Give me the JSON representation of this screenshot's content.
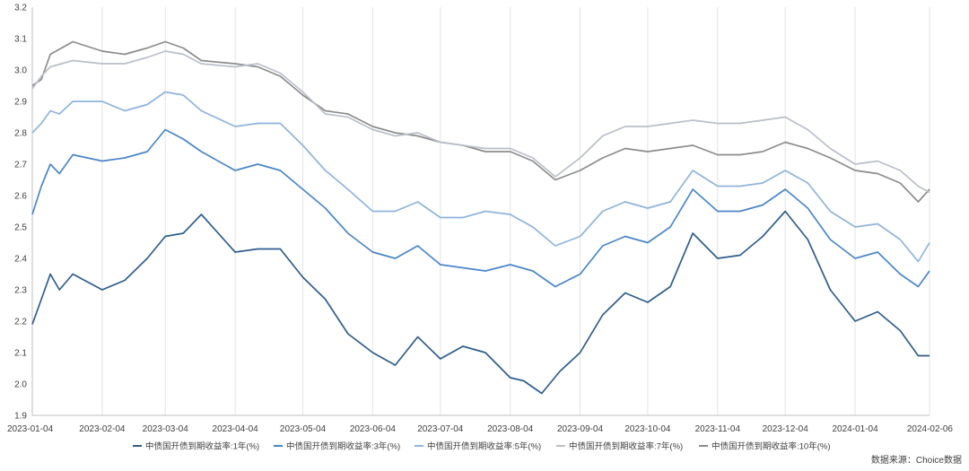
{
  "chart_data": {
    "type": "line",
    "title": "",
    "xlabel": "",
    "ylabel": "",
    "x_start": "2023-01-04",
    "x_end": "2024-02-06",
    "ylim": [
      1.9,
      3.2
    ],
    "yticks": [
      "1.9",
      "2.0",
      "2.1",
      "2.2",
      "2.3",
      "2.4",
      "2.5",
      "2.6",
      "2.7",
      "2.8",
      "2.9",
      "3.0",
      "3.1",
      "3.2"
    ],
    "xticks": [
      "2023-01-04",
      "2023-02-04",
      "2023-03-04",
      "2023-04-04",
      "2023-05-04",
      "2023-06-04",
      "2023-07-04",
      "2023-08-04",
      "2023-09-04",
      "2023-10-04",
      "2023-11-04",
      "2023-12-04",
      "2024-01-04",
      "2024-02-06"
    ],
    "grid": "vertical",
    "legend_position": "bottom",
    "series": [
      {
        "name": "中债国开债到期收益率:1年(%)",
        "color": "#2f5d8c",
        "points": [
          [
            "2023-01-04",
            2.19
          ],
          [
            "2023-01-08",
            2.27
          ],
          [
            "2023-01-12",
            2.35
          ],
          [
            "2023-01-16",
            2.3
          ],
          [
            "2023-01-22",
            2.35
          ],
          [
            "2023-02-04",
            2.3
          ],
          [
            "2023-02-14",
            2.33
          ],
          [
            "2023-02-24",
            2.4
          ],
          [
            "2023-03-04",
            2.47
          ],
          [
            "2023-03-12",
            2.48
          ],
          [
            "2023-03-20",
            2.54
          ],
          [
            "2023-04-04",
            2.42
          ],
          [
            "2023-04-14",
            2.43
          ],
          [
            "2023-04-24",
            2.43
          ],
          [
            "2023-05-04",
            2.34
          ],
          [
            "2023-05-14",
            2.27
          ],
          [
            "2023-05-24",
            2.16
          ],
          [
            "2023-06-04",
            2.1
          ],
          [
            "2023-06-14",
            2.06
          ],
          [
            "2023-06-24",
            2.15
          ],
          [
            "2023-07-04",
            2.08
          ],
          [
            "2023-07-14",
            2.12
          ],
          [
            "2023-07-24",
            2.1
          ],
          [
            "2023-08-04",
            2.02
          ],
          [
            "2023-08-10",
            2.01
          ],
          [
            "2023-08-18",
            1.97
          ],
          [
            "2023-08-26",
            2.04
          ],
          [
            "2023-09-04",
            2.1
          ],
          [
            "2023-09-14",
            2.22
          ],
          [
            "2023-09-24",
            2.29
          ],
          [
            "2023-10-04",
            2.26
          ],
          [
            "2023-10-14",
            2.31
          ],
          [
            "2023-10-24",
            2.48
          ],
          [
            "2023-11-04",
            2.4
          ],
          [
            "2023-11-14",
            2.41
          ],
          [
            "2023-11-24",
            2.47
          ],
          [
            "2023-12-04",
            2.55
          ],
          [
            "2023-12-14",
            2.46
          ],
          [
            "2023-12-24",
            2.3
          ],
          [
            "2024-01-04",
            2.2
          ],
          [
            "2024-01-14",
            2.23
          ],
          [
            "2024-01-24",
            2.17
          ],
          [
            "2024-02-01",
            2.09
          ],
          [
            "2024-02-06",
            2.09
          ]
        ]
      },
      {
        "name": "中债国开债到期收益率:3年(%)",
        "color": "#4a86c8",
        "points": [
          [
            "2023-01-04",
            2.54
          ],
          [
            "2023-01-08",
            2.63
          ],
          [
            "2023-01-12",
            2.7
          ],
          [
            "2023-01-16",
            2.67
          ],
          [
            "2023-01-22",
            2.73
          ],
          [
            "2023-02-04",
            2.71
          ],
          [
            "2023-02-14",
            2.72
          ],
          [
            "2023-02-24",
            2.74
          ],
          [
            "2023-03-04",
            2.81
          ],
          [
            "2023-03-12",
            2.78
          ],
          [
            "2023-03-20",
            2.74
          ],
          [
            "2023-04-04",
            2.68
          ],
          [
            "2023-04-14",
            2.7
          ],
          [
            "2023-04-24",
            2.68
          ],
          [
            "2023-05-04",
            2.62
          ],
          [
            "2023-05-14",
            2.56
          ],
          [
            "2023-05-24",
            2.48
          ],
          [
            "2023-06-04",
            2.42
          ],
          [
            "2023-06-14",
            2.4
          ],
          [
            "2023-06-24",
            2.44
          ],
          [
            "2023-07-04",
            2.38
          ],
          [
            "2023-07-14",
            2.37
          ],
          [
            "2023-07-24",
            2.36
          ],
          [
            "2023-08-04",
            2.38
          ],
          [
            "2023-08-14",
            2.36
          ],
          [
            "2023-08-24",
            2.31
          ],
          [
            "2023-09-04",
            2.35
          ],
          [
            "2023-09-14",
            2.44
          ],
          [
            "2023-09-24",
            2.47
          ],
          [
            "2023-10-04",
            2.45
          ],
          [
            "2023-10-14",
            2.5
          ],
          [
            "2023-10-24",
            2.62
          ],
          [
            "2023-11-04",
            2.55
          ],
          [
            "2023-11-14",
            2.55
          ],
          [
            "2023-11-24",
            2.57
          ],
          [
            "2023-12-04",
            2.62
          ],
          [
            "2023-12-14",
            2.56
          ],
          [
            "2023-12-24",
            2.46
          ],
          [
            "2024-01-04",
            2.4
          ],
          [
            "2024-01-14",
            2.42
          ],
          [
            "2024-01-24",
            2.35
          ],
          [
            "2024-02-01",
            2.31
          ],
          [
            "2024-02-06",
            2.36
          ]
        ]
      },
      {
        "name": "中债国开债到期收益率:5年(%)",
        "color": "#8fb4dc",
        "points": [
          [
            "2023-01-04",
            2.8
          ],
          [
            "2023-01-08",
            2.83
          ],
          [
            "2023-01-12",
            2.87
          ],
          [
            "2023-01-16",
            2.86
          ],
          [
            "2023-01-22",
            2.9
          ],
          [
            "2023-02-04",
            2.9
          ],
          [
            "2023-02-14",
            2.87
          ],
          [
            "2023-02-24",
            2.89
          ],
          [
            "2023-03-04",
            2.93
          ],
          [
            "2023-03-12",
            2.92
          ],
          [
            "2023-03-20",
            2.87
          ],
          [
            "2023-04-04",
            2.82
          ],
          [
            "2023-04-14",
            2.83
          ],
          [
            "2023-04-24",
            2.83
          ],
          [
            "2023-05-04",
            2.76
          ],
          [
            "2023-05-14",
            2.68
          ],
          [
            "2023-05-24",
            2.62
          ],
          [
            "2023-06-04",
            2.55
          ],
          [
            "2023-06-14",
            2.55
          ],
          [
            "2023-06-24",
            2.58
          ],
          [
            "2023-07-04",
            2.53
          ],
          [
            "2023-07-14",
            2.53
          ],
          [
            "2023-07-24",
            2.55
          ],
          [
            "2023-08-04",
            2.54
          ],
          [
            "2023-08-14",
            2.5
          ],
          [
            "2023-08-24",
            2.44
          ],
          [
            "2023-09-04",
            2.47
          ],
          [
            "2023-09-14",
            2.55
          ],
          [
            "2023-09-24",
            2.58
          ],
          [
            "2023-10-04",
            2.56
          ],
          [
            "2023-10-14",
            2.58
          ],
          [
            "2023-10-24",
            2.68
          ],
          [
            "2023-11-04",
            2.63
          ],
          [
            "2023-11-14",
            2.63
          ],
          [
            "2023-11-24",
            2.64
          ],
          [
            "2023-12-04",
            2.68
          ],
          [
            "2023-12-14",
            2.64
          ],
          [
            "2023-12-24",
            2.55
          ],
          [
            "2024-01-04",
            2.5
          ],
          [
            "2024-01-14",
            2.51
          ],
          [
            "2024-01-24",
            2.46
          ],
          [
            "2024-02-01",
            2.39
          ],
          [
            "2024-02-06",
            2.45
          ]
        ]
      },
      {
        "name": "中债国开债到期收益率:7年(%)",
        "color": "#b9bfc9",
        "points": [
          [
            "2023-01-04",
            2.94
          ],
          [
            "2023-01-08",
            2.98
          ],
          [
            "2023-01-12",
            3.01
          ],
          [
            "2023-01-22",
            3.03
          ],
          [
            "2023-02-04",
            3.02
          ],
          [
            "2023-02-14",
            3.02
          ],
          [
            "2023-02-24",
            3.04
          ],
          [
            "2023-03-04",
            3.06
          ],
          [
            "2023-03-12",
            3.05
          ],
          [
            "2023-03-20",
            3.02
          ],
          [
            "2023-04-04",
            3.01
          ],
          [
            "2023-04-14",
            3.02
          ],
          [
            "2023-04-24",
            2.99
          ],
          [
            "2023-05-04",
            2.93
          ],
          [
            "2023-05-14",
            2.86
          ],
          [
            "2023-05-24",
            2.85
          ],
          [
            "2023-06-04",
            2.81
          ],
          [
            "2023-06-14",
            2.79
          ],
          [
            "2023-06-24",
            2.8
          ],
          [
            "2023-07-04",
            2.77
          ],
          [
            "2023-07-14",
            2.76
          ],
          [
            "2023-07-24",
            2.75
          ],
          [
            "2023-08-04",
            2.75
          ],
          [
            "2023-08-14",
            2.72
          ],
          [
            "2023-08-24",
            2.66
          ],
          [
            "2023-09-04",
            2.72
          ],
          [
            "2023-09-14",
            2.79
          ],
          [
            "2023-09-24",
            2.82
          ],
          [
            "2023-10-04",
            2.82
          ],
          [
            "2023-10-14",
            2.83
          ],
          [
            "2023-10-24",
            2.84
          ],
          [
            "2023-11-04",
            2.83
          ],
          [
            "2023-11-14",
            2.83
          ],
          [
            "2023-11-24",
            2.84
          ],
          [
            "2023-12-04",
            2.85
          ],
          [
            "2023-12-14",
            2.81
          ],
          [
            "2023-12-24",
            2.75
          ],
          [
            "2024-01-04",
            2.7
          ],
          [
            "2024-01-14",
            2.71
          ],
          [
            "2024-01-24",
            2.68
          ],
          [
            "2024-02-01",
            2.63
          ],
          [
            "2024-02-06",
            2.61
          ]
        ]
      },
      {
        "name": "中债国开债到期收益率:10年(%)",
        "color": "#8c8c8c",
        "points": [
          [
            "2023-01-04",
            2.95
          ],
          [
            "2023-01-08",
            2.97
          ],
          [
            "2023-01-12",
            3.05
          ],
          [
            "2023-01-22",
            3.09
          ],
          [
            "2023-02-04",
            3.06
          ],
          [
            "2023-02-14",
            3.05
          ],
          [
            "2023-02-24",
            3.07
          ],
          [
            "2023-03-04",
            3.09
          ],
          [
            "2023-03-12",
            3.07
          ],
          [
            "2023-03-20",
            3.03
          ],
          [
            "2023-04-04",
            3.02
          ],
          [
            "2023-04-14",
            3.01
          ],
          [
            "2023-04-24",
            2.98
          ],
          [
            "2023-05-04",
            2.92
          ],
          [
            "2023-05-14",
            2.87
          ],
          [
            "2023-05-24",
            2.86
          ],
          [
            "2023-06-04",
            2.82
          ],
          [
            "2023-06-14",
            2.8
          ],
          [
            "2023-06-24",
            2.79
          ],
          [
            "2023-07-04",
            2.77
          ],
          [
            "2023-07-14",
            2.76
          ],
          [
            "2023-07-24",
            2.74
          ],
          [
            "2023-08-04",
            2.74
          ],
          [
            "2023-08-14",
            2.71
          ],
          [
            "2023-08-24",
            2.65
          ],
          [
            "2023-09-04",
            2.68
          ],
          [
            "2023-09-14",
            2.72
          ],
          [
            "2023-09-24",
            2.75
          ],
          [
            "2023-10-04",
            2.74
          ],
          [
            "2023-10-14",
            2.75
          ],
          [
            "2023-10-24",
            2.76
          ],
          [
            "2023-11-04",
            2.73
          ],
          [
            "2023-11-14",
            2.73
          ],
          [
            "2023-11-24",
            2.74
          ],
          [
            "2023-12-04",
            2.77
          ],
          [
            "2023-12-14",
            2.75
          ],
          [
            "2023-12-24",
            2.72
          ],
          [
            "2024-01-04",
            2.68
          ],
          [
            "2024-01-14",
            2.67
          ],
          [
            "2024-01-24",
            2.64
          ],
          [
            "2024-02-01",
            2.58
          ],
          [
            "2024-02-06",
            2.62
          ]
        ]
      }
    ]
  },
  "source_note": "数据来源：Choice数据"
}
